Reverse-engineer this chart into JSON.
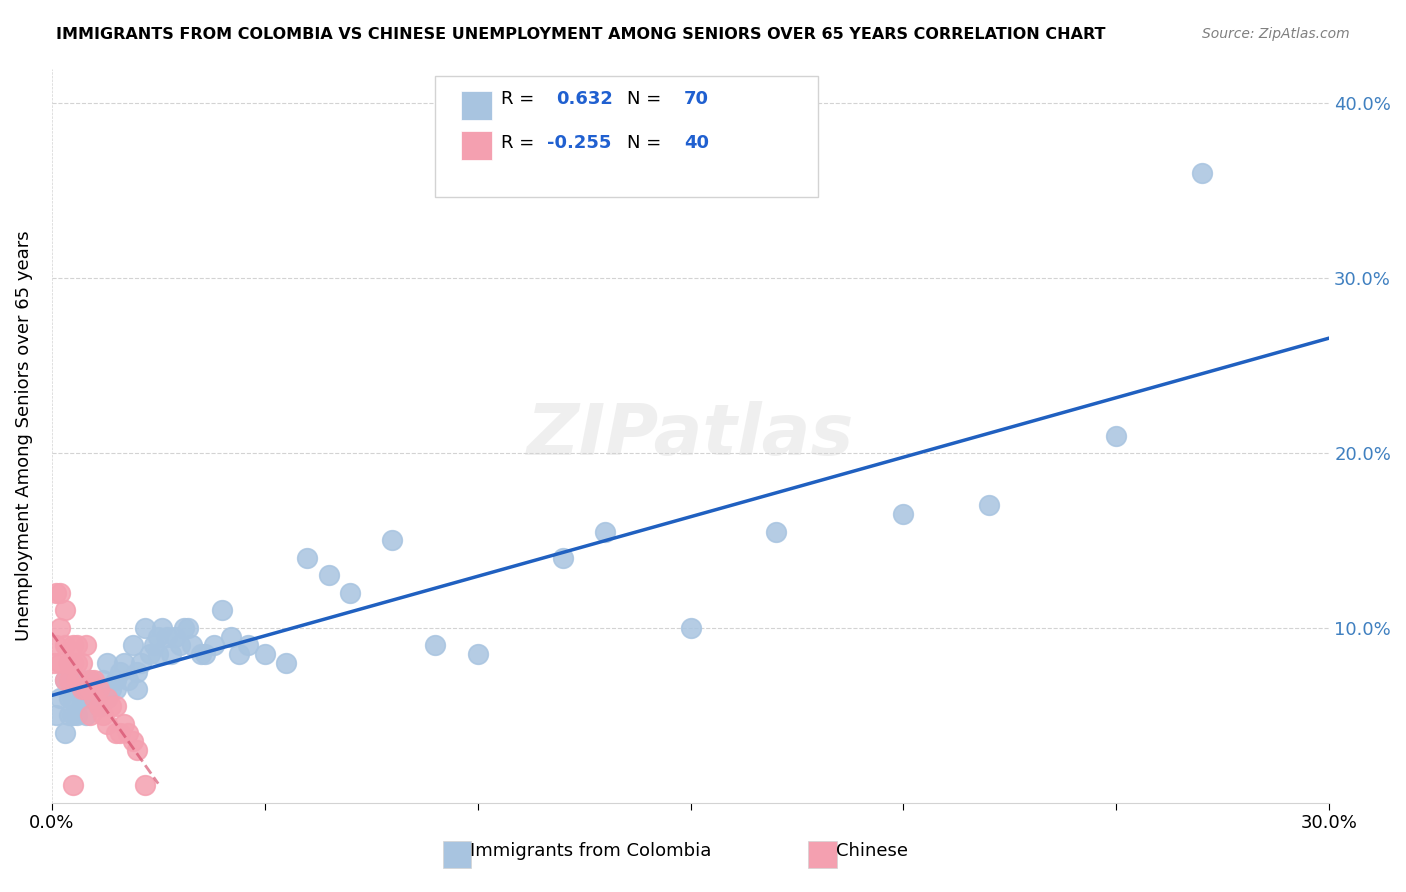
{
  "title": "IMMIGRANTS FROM COLOMBIA VS CHINESE UNEMPLOYMENT AMONG SENIORS OVER 65 YEARS CORRELATION CHART",
  "source": "Source: ZipAtlas.com",
  "ylabel": "Unemployment Among Seniors over 65 years",
  "xlabel": "",
  "xlim": [
    0.0,
    0.3
  ],
  "ylim": [
    0.0,
    0.42
  ],
  "xticks": [
    0.0,
    0.05,
    0.1,
    0.15,
    0.2,
    0.25,
    0.3
  ],
  "yticks": [
    0.0,
    0.1,
    0.2,
    0.3,
    0.4
  ],
  "xtick_labels": [
    "0.0%",
    "",
    "",
    "",
    "",
    "",
    "30.0%"
  ],
  "ytick_labels_right": [
    "",
    "10.0%",
    "20.0%",
    "30.0%",
    "40.0%"
  ],
  "colombia_R": 0.632,
  "colombia_N": 70,
  "chinese_R": -0.255,
  "chinese_N": 40,
  "colombia_color": "#a8c4e0",
  "chinese_color": "#f4a0b0",
  "colombia_line_color": "#2060c0",
  "chinese_line_color": "#d04060",
  "background_color": "#ffffff",
  "watermark": "ZIPatlas",
  "colombia_x": [
    0.001,
    0.002,
    0.003,
    0.003,
    0.004,
    0.004,
    0.005,
    0.005,
    0.005,
    0.006,
    0.006,
    0.007,
    0.007,
    0.008,
    0.008,
    0.009,
    0.009,
    0.01,
    0.01,
    0.011,
    0.012,
    0.012,
    0.013,
    0.013,
    0.014,
    0.015,
    0.015,
    0.016,
    0.017,
    0.018,
    0.019,
    0.02,
    0.02,
    0.021,
    0.022,
    0.023,
    0.024,
    0.025,
    0.025,
    0.026,
    0.027,
    0.028,
    0.029,
    0.03,
    0.031,
    0.032,
    0.033,
    0.035,
    0.036,
    0.038,
    0.04,
    0.042,
    0.044,
    0.046,
    0.05,
    0.055,
    0.06,
    0.065,
    0.07,
    0.08,
    0.09,
    0.1,
    0.12,
    0.13,
    0.15,
    0.17,
    0.2,
    0.22,
    0.25,
    0.27
  ],
  "colombia_y": [
    0.05,
    0.06,
    0.07,
    0.04,
    0.05,
    0.06,
    0.06,
    0.05,
    0.07,
    0.07,
    0.05,
    0.06,
    0.07,
    0.06,
    0.05,
    0.065,
    0.07,
    0.065,
    0.06,
    0.055,
    0.07,
    0.065,
    0.06,
    0.08,
    0.065,
    0.07,
    0.065,
    0.075,
    0.08,
    0.07,
    0.09,
    0.075,
    0.065,
    0.08,
    0.1,
    0.085,
    0.09,
    0.095,
    0.085,
    0.1,
    0.095,
    0.085,
    0.095,
    0.09,
    0.1,
    0.1,
    0.09,
    0.085,
    0.085,
    0.09,
    0.11,
    0.095,
    0.085,
    0.09,
    0.085,
    0.08,
    0.14,
    0.13,
    0.12,
    0.15,
    0.09,
    0.085,
    0.14,
    0.155,
    0.1,
    0.155,
    0.165,
    0.17,
    0.21,
    0.36
  ],
  "chinese_x": [
    0.0005,
    0.001,
    0.001,
    0.002,
    0.002,
    0.002,
    0.003,
    0.003,
    0.003,
    0.004,
    0.004,
    0.005,
    0.005,
    0.005,
    0.006,
    0.006,
    0.006,
    0.007,
    0.007,
    0.008,
    0.008,
    0.009,
    0.009,
    0.009,
    0.01,
    0.01,
    0.011,
    0.011,
    0.012,
    0.013,
    0.013,
    0.014,
    0.015,
    0.015,
    0.016,
    0.017,
    0.018,
    0.019,
    0.02,
    0.022
  ],
  "chinese_y": [
    0.08,
    0.09,
    0.12,
    0.1,
    0.08,
    0.12,
    0.09,
    0.07,
    0.11,
    0.08,
    0.07,
    0.09,
    0.08,
    0.01,
    0.08,
    0.07,
    0.09,
    0.065,
    0.08,
    0.065,
    0.09,
    0.07,
    0.065,
    0.05,
    0.06,
    0.07,
    0.065,
    0.055,
    0.05,
    0.06,
    0.045,
    0.055,
    0.04,
    0.055,
    0.04,
    0.045,
    0.04,
    0.035,
    0.03,
    0.01
  ]
}
